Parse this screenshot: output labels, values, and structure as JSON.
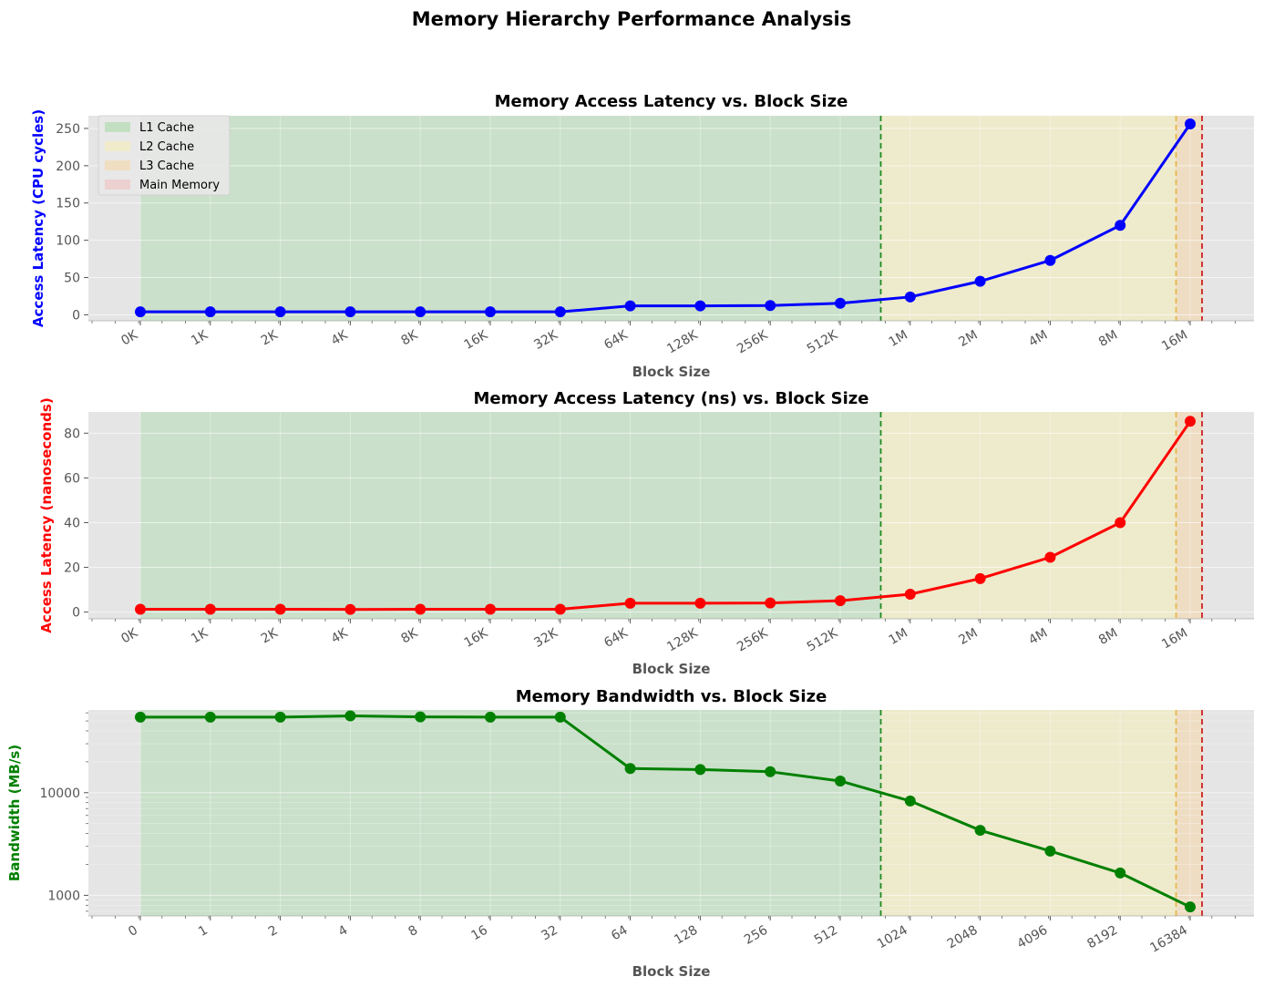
{
  "suptitle": "Memory Hierarchy Performance Analysis",
  "chart_data": [
    {
      "type": "line",
      "title": "Memory Access Latency vs. Block Size",
      "xlabel": "Block Size",
      "ylabel": "Access Latency (CPU cycles)",
      "ylabel_color": "#0000ff",
      "color": "#0000ff",
      "categories": [
        "0K",
        "1K",
        "2K",
        "4K",
        "8K",
        "16K",
        "32K",
        "64K",
        "128K",
        "256K",
        "512K",
        "1M",
        "2M",
        "4M",
        "8M",
        "16M"
      ],
      "values": [
        4,
        4,
        4,
        4,
        4,
        4,
        4,
        12,
        12,
        12.5,
        15.5,
        24,
        45,
        73,
        120,
        256
      ],
      "yscale": "linear",
      "ylim": [
        -8,
        267
      ],
      "yticks": [
        0,
        50,
        100,
        150,
        200,
        250
      ],
      "grid": true,
      "legend": {
        "placement": "top-left",
        "entries": [
          {
            "label": "L1 Cache",
            "color": "#a9d9a9"
          },
          {
            "label": "L2 Cache",
            "color": "#f5efb8"
          },
          {
            "label": "L3 Cache",
            "color": "#f5d7a8"
          },
          {
            "label": "Main Memory",
            "color": "#f0c0c0"
          }
        ]
      }
    },
    {
      "type": "line",
      "title": "Memory Access Latency (ns) vs. Block Size",
      "xlabel": "Block Size",
      "ylabel": "Access Latency (nanoseconds)",
      "ylabel_color": "#ff0000",
      "color": "#ff0000",
      "categories": [
        "0K",
        "1K",
        "2K",
        "4K",
        "8K",
        "16K",
        "32K",
        "64K",
        "128K",
        "256K",
        "512K",
        "1M",
        "2M",
        "4M",
        "8M",
        "16M"
      ],
      "values": [
        1.3,
        1.3,
        1.3,
        1.2,
        1.3,
        1.3,
        1.3,
        4,
        4,
        4.1,
        5.1,
        8,
        15,
        24.5,
        40,
        85.3
      ],
      "yscale": "linear",
      "ylim": [
        -3,
        89.5
      ],
      "yticks": [
        0,
        20,
        40,
        60,
        80
      ],
      "grid": true
    },
    {
      "type": "line",
      "title": "Memory Bandwidth vs. Block Size",
      "xlabel": "Block Size",
      "ylabel": "Bandwidth (MB/s)",
      "ylabel_color": "#008000",
      "color": "#008000",
      "categories": [
        "0",
        "1",
        "2",
        "4",
        "8",
        "16",
        "32",
        "64",
        "128",
        "256",
        "512",
        "1024",
        "2048",
        "4096",
        "8192",
        "16384"
      ],
      "values": [
        54500,
        54500,
        54500,
        56000,
        54800,
        54500,
        54500,
        17200,
        16800,
        16000,
        13000,
        8300,
        4300,
        2700,
        1650,
        770
      ],
      "yscale": "log",
      "ylim": [
        630,
        64000
      ],
      "yticks": [
        1000,
        10000
      ],
      "grid": true
    }
  ],
  "regions": {
    "l1_color": "#a9d9a9",
    "l2_color": "#f5efb8",
    "l3_color": "#f5d7a8",
    "mem_color": "#f0c0c0",
    "l1_line_color": "#228b22",
    "l3_line_color": "#e6b84a",
    "mem_line_color": "#cc2222"
  }
}
